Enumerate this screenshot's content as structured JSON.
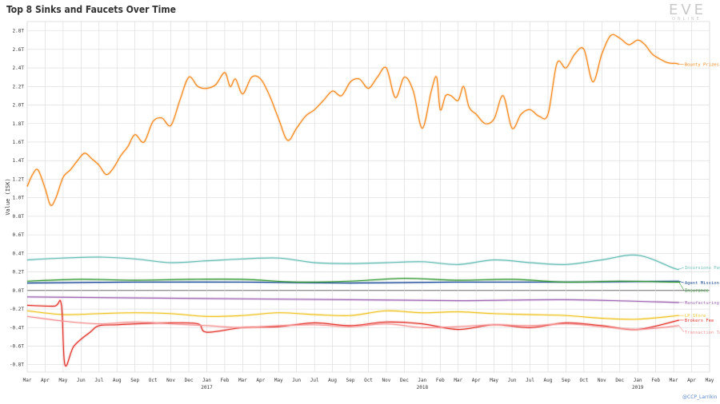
{
  "chart_data": {
    "type": "line",
    "title": "Top 8 Sinks and Faucets Over Time",
    "ylabel": "Value (ISK)",
    "xlabel": "",
    "ylim": [
      -0.88,
      2.9
    ],
    "y_ticks": [
      {
        "v": 2.8,
        "label": "2.8T"
      },
      {
        "v": 2.6,
        "label": "2.6T"
      },
      {
        "v": 2.4,
        "label": "2.4T"
      },
      {
        "v": 2.2,
        "label": "2.2T"
      },
      {
        "v": 2.0,
        "label": "2.0T"
      },
      {
        "v": 1.8,
        "label": "1.8T"
      },
      {
        "v": 1.6,
        "label": "1.6T"
      },
      {
        "v": 1.4,
        "label": "1.4T"
      },
      {
        "v": 1.2,
        "label": "1.2T"
      },
      {
        "v": 1.0,
        "label": "1.0T"
      },
      {
        "v": 0.8,
        "label": "0.8T"
      },
      {
        "v": 0.6,
        "label": "0.6T"
      },
      {
        "v": 0.4,
        "label": "0.4T"
      },
      {
        "v": 0.2,
        "label": "0.2T"
      },
      {
        "v": 0.0,
        "label": "0.0T"
      },
      {
        "v": -0.2,
        "label": "-0.2T"
      },
      {
        "v": -0.4,
        "label": "-0.4T"
      },
      {
        "v": -0.6,
        "label": "-0.6T"
      },
      {
        "v": -0.8,
        "label": "-0.8T"
      }
    ],
    "x_ticks": [
      "Mar",
      "Apr",
      "May",
      "Jun",
      "Jul",
      "Aug",
      "Sep",
      "Oct",
      "Nov",
      "Dec",
      "Jan",
      "Feb",
      "Mar",
      "Apr",
      "May",
      "Jun",
      "Jul",
      "Aug",
      "Sep",
      "Oct",
      "Nov",
      "Dec",
      "Jan",
      "Feb",
      "Mar",
      "Apr",
      "May",
      "Jun",
      "Jul",
      "Aug",
      "Sep",
      "Oct",
      "Nov",
      "Dec",
      "Jan",
      "Feb",
      "Mar",
      "Apr",
      "May"
    ],
    "x_years": [
      {
        "at": 10,
        "label": "2017"
      },
      {
        "at": 22,
        "label": "2018"
      },
      {
        "at": 34,
        "label": "2019"
      }
    ],
    "grid": true,
    "legend": "inline labels at right end of each series",
    "x_unit": "months since Mar 2016",
    "series": [
      {
        "name": "Bounty Prizes",
        "color": "#f58a1f",
        "x": [
          0,
          0.3,
          0.6,
          1.0,
          1.3,
          1.6,
          2.0,
          2.4,
          2.8,
          3.2,
          3.6,
          4.0,
          4.4,
          4.8,
          5.2,
          5.6,
          6.0,
          6.5,
          7.0,
          7.5,
          8.0,
          8.5,
          9.0,
          9.5,
          10.0,
          10.5,
          11.0,
          11.3,
          11.6,
          12.0,
          12.5,
          13.0,
          13.5,
          14.0,
          14.5,
          15.0,
          15.5,
          16.0,
          16.5,
          17.0,
          17.5,
          18.0,
          18.5,
          19.0,
          19.5,
          20.0,
          20.5,
          21.0,
          21.5,
          22.0,
          22.5,
          22.8,
          23.0,
          23.3,
          23.6,
          24.0,
          24.3,
          24.6,
          25.0,
          25.5,
          26.0,
          26.5,
          27.0,
          27.5,
          28.0,
          28.5,
          29.0,
          29.5,
          30.0,
          30.5,
          31.0,
          31.5,
          32.0,
          32.5,
          33.0,
          33.5,
          34.0,
          34.4,
          34.8,
          35.2,
          35.6,
          35.9,
          36.1,
          36.3
        ],
        "y": [
          1.12,
          1.25,
          1.3,
          1.1,
          0.92,
          1.0,
          1.22,
          1.3,
          1.4,
          1.48,
          1.42,
          1.35,
          1.25,
          1.32,
          1.45,
          1.55,
          1.68,
          1.6,
          1.82,
          1.86,
          1.78,
          2.05,
          2.3,
          2.2,
          2.18,
          2.22,
          2.35,
          2.2,
          2.28,
          2.12,
          2.3,
          2.28,
          2.1,
          1.85,
          1.62,
          1.75,
          1.88,
          1.95,
          2.05,
          2.15,
          2.1,
          2.25,
          2.28,
          2.18,
          2.3,
          2.4,
          2.08,
          2.3,
          2.15,
          1.75,
          2.15,
          2.3,
          1.95,
          2.1,
          2.1,
          2.05,
          2.2,
          1.98,
          1.9,
          1.8,
          1.85,
          2.1,
          1.75,
          1.9,
          1.95,
          1.88,
          1.9,
          2.45,
          2.4,
          2.55,
          2.6,
          2.25,
          2.55,
          2.75,
          2.72,
          2.65,
          2.7,
          2.65,
          2.55,
          2.5,
          2.46,
          2.45,
          2.45,
          2.44
        ]
      },
      {
        "name": "Incursions Payout",
        "color": "#6bbfb7",
        "x": [
          0,
          2,
          4,
          6,
          8,
          10,
          12,
          14,
          16,
          18,
          20,
          22,
          24,
          26,
          28,
          30,
          32,
          34,
          36,
          36.3
        ],
        "y": [
          0.33,
          0.35,
          0.36,
          0.34,
          0.3,
          0.32,
          0.34,
          0.35,
          0.3,
          0.29,
          0.3,
          0.31,
          0.28,
          0.33,
          0.3,
          0.28,
          0.33,
          0.38,
          0.24,
          0.23
        ]
      },
      {
        "name": "Agent Mission Rewards",
        "color": "#1f4e9a",
        "x": [
          0,
          6,
          12,
          18,
          24,
          30,
          36.3
        ],
        "y": [
          0.08,
          0.09,
          0.09,
          0.08,
          0.09,
          0.09,
          0.1
        ]
      },
      {
        "name": "Insurance",
        "color": "#3a9b3a",
        "x": [
          0,
          3,
          6,
          9,
          12,
          15,
          18,
          21,
          24,
          27,
          30,
          33,
          36,
          36.3
        ],
        "y": [
          0.1,
          0.12,
          0.11,
          0.12,
          0.12,
          0.09,
          0.1,
          0.13,
          0.11,
          0.12,
          0.09,
          0.1,
          0.09,
          0.09
        ]
      },
      {
        "name": "Manufacturing",
        "color": "#a06ab4",
        "x": [
          0,
          6,
          12,
          18,
          24,
          30,
          36.3
        ],
        "y": [
          -0.07,
          -0.08,
          -0.09,
          -0.1,
          -0.11,
          -0.1,
          -0.13
        ]
      },
      {
        "name": "LP Store",
        "color": "#f0c52a",
        "x": [
          0,
          2,
          4,
          6,
          8,
          10,
          12,
          14,
          16,
          18,
          20,
          22,
          24,
          26,
          28,
          30,
          32,
          34,
          36.3
        ],
        "y": [
          -0.22,
          -0.26,
          -0.25,
          -0.24,
          -0.25,
          -0.28,
          -0.27,
          -0.24,
          -0.26,
          -0.27,
          -0.22,
          -0.24,
          -0.23,
          -0.25,
          -0.26,
          -0.27,
          -0.3,
          -0.31,
          -0.27
        ]
      },
      {
        "name": "Brokers Fee",
        "color": "#e2362f",
        "x": [
          0,
          1.5,
          1.9,
          2.1,
          2.6,
          3.5,
          4,
          5,
          6,
          8,
          9.5,
          10,
          12,
          14,
          16,
          18,
          20,
          22,
          24,
          26,
          28,
          30,
          32,
          34,
          36.3
        ],
        "y": [
          -0.16,
          -0.17,
          -0.15,
          -0.8,
          -0.6,
          -0.45,
          -0.38,
          -0.37,
          -0.36,
          -0.35,
          -0.36,
          -0.45,
          -0.4,
          -0.39,
          -0.35,
          -0.38,
          -0.34,
          -0.36,
          -0.42,
          -0.37,
          -0.4,
          -0.35,
          -0.38,
          -0.42,
          -0.32
        ]
      },
      {
        "name": "Transaction Tax",
        "color": "#f59696",
        "x": [
          0,
          2,
          4,
          6,
          8,
          10,
          12,
          14,
          16,
          18,
          20,
          22,
          24,
          26,
          28,
          30,
          32,
          34,
          36.3
        ],
        "y": [
          -0.28,
          -0.33,
          -0.36,
          -0.34,
          -0.36,
          -0.38,
          -0.4,
          -0.38,
          -0.37,
          -0.39,
          -0.36,
          -0.4,
          -0.39,
          -0.37,
          -0.38,
          -0.36,
          -0.39,
          -0.42,
          -0.38
        ]
      }
    ]
  },
  "title": "Top 8 Sinks and Faucets Over Time",
  "logo": {
    "text": "EVE",
    "sub": "ONLINE"
  },
  "credit": "@CCP_Larrikin"
}
